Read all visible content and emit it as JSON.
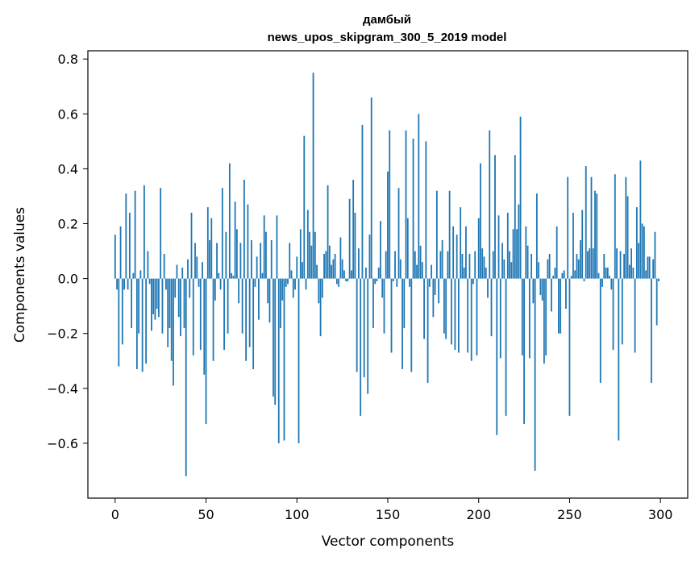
{
  "chart_data": {
    "type": "bar",
    "title": "дамбый",
    "subtitle": "news_upos_skipgram_300_5_2019 model",
    "xlabel": "Vector components",
    "ylabel": "Components values",
    "xlim": [
      -15,
      315
    ],
    "ylim": [
      -0.8,
      0.83
    ],
    "x_ticks": [
      {
        "value": 0,
        "label": "0"
      },
      {
        "value": 50,
        "label": "50"
      },
      {
        "value": 100,
        "label": "100"
      },
      {
        "value": 150,
        "label": "150"
      },
      {
        "value": 200,
        "label": "200"
      },
      {
        "value": 250,
        "label": "250"
      },
      {
        "value": 300,
        "label": "300"
      }
    ],
    "y_ticks": [
      {
        "value": -0.6,
        "label": "−0.6"
      },
      {
        "value": -0.4,
        "label": "−0.4"
      },
      {
        "value": -0.2,
        "label": "−0.2"
      },
      {
        "value": 0.0,
        "label": "0.0"
      },
      {
        "value": 0.2,
        "label": "0.2"
      },
      {
        "value": 0.4,
        "label": "0.4"
      },
      {
        "value": 0.6,
        "label": "0.6"
      },
      {
        "value": 0.8,
        "label": "0.8"
      }
    ],
    "bar_color": "#1f77b4",
    "grid": false,
    "values": [
      0.16,
      -0.04,
      -0.32,
      0.19,
      -0.24,
      -0.04,
      0.31,
      -0.04,
      0.24,
      -0.18,
      0.02,
      0.32,
      -0.33,
      -0.2,
      0.03,
      -0.34,
      0.34,
      -0.31,
      0.1,
      -0.02,
      -0.19,
      -0.13,
      -0.15,
      -0.11,
      -0.14,
      0.33,
      -0.2,
      0.09,
      -0.04,
      -0.25,
      -0.18,
      -0.3,
      -0.39,
      -0.07,
      0.05,
      -0.14,
      -0.21,
      0.04,
      -0.18,
      -0.72,
      0.07,
      -0.07,
      0.24,
      -0.28,
      0.13,
      0.08,
      -0.03,
      -0.26,
      0.06,
      -0.35,
      -0.53,
      0.26,
      0.14,
      0.22,
      -0.3,
      -0.08,
      0.13,
      0.02,
      -0.04,
      0.33,
      -0.26,
      0.17,
      -0.2,
      0.42,
      0.02,
      0.01,
      0.28,
      0.18,
      -0.09,
      0.13,
      -0.2,
      0.36,
      -0.3,
      0.27,
      -0.25,
      0.14,
      -0.33,
      -0.03,
      0.08,
      -0.15,
      0.13,
      0.02,
      0.23,
      0.17,
      -0.09,
      -0.16,
      0.14,
      -0.43,
      -0.46,
      0.23,
      -0.6,
      -0.18,
      -0.08,
      -0.59,
      -0.03,
      -0.02,
      0.13,
      0.03,
      -0.07,
      -0.04,
      0.08,
      -0.6,
      0.18,
      0.06,
      0.52,
      -0.04,
      0.25,
      0.17,
      0.12,
      0.75,
      0.17,
      0.05,
      -0.09,
      -0.21,
      -0.07,
      0.09,
      0.1,
      0.34,
      0.12,
      0.05,
      0.07,
      0.09,
      -0.02,
      -0.03,
      0.15,
      0.07,
      0.03,
      -0.01,
      -0.01,
      0.29,
      0.03,
      0.36,
      0.24,
      -0.34,
      0.11,
      -0.5,
      0.56,
      -0.36,
      0.04,
      -0.42,
      0.16,
      0.66,
      -0.18,
      -0.02,
      -0.01,
      0.04,
      0.21,
      -0.07,
      -0.2,
      0.1,
      0.39,
      0.54,
      -0.27,
      -0.01,
      0.1,
      -0.03,
      0.33,
      0.07,
      -0.33,
      -0.18,
      0.54,
      0.22,
      -0.03,
      -0.34,
      0.51,
      0.1,
      0.05,
      0.6,
      0.12,
      0.06,
      -0.22,
      0.5,
      -0.38,
      -0.03,
      0.05,
      -0.14,
      -0.06,
      0.32,
      -0.09,
      0.1,
      0.14,
      -0.2,
      -0.22,
      0.1,
      0.32,
      -0.24,
      0.19,
      -0.26,
      0.16,
      -0.27,
      0.26,
      0.09,
      0.04,
      0.19,
      -0.27,
      0.09,
      -0.3,
      -0.02,
      0.1,
      -0.28,
      0.22,
      0.42,
      0.11,
      0.08,
      0.04,
      -0.07,
      0.54,
      -0.21,
      0.1,
      0.45,
      -0.57,
      0.23,
      -0.29,
      0.13,
      0.07,
      -0.5,
      0.24,
      0.1,
      0.06,
      0.18,
      0.45,
      0.18,
      0.27,
      0.59,
      -0.28,
      -0.53,
      0.19,
      0.12,
      -0.29,
      0.09,
      -0.09,
      -0.7,
      0.31,
      0.06,
      -0.06,
      -0.08,
      -0.31,
      -0.28,
      0.07,
      0.09,
      -0.12,
      0.01,
      0.04,
      0.19,
      -0.2,
      -0.2,
      0.02,
      0.03,
      -0.11,
      0.37,
      -0.5,
      0.01,
      0.24,
      0.03,
      0.09,
      0.07,
      0.14,
      0.25,
      -0.01,
      0.41,
      0.1,
      0.11,
      0.37,
      0.11,
      0.32,
      0.31,
      0.02,
      -0.38,
      -0.03,
      0.09,
      0.04,
      0.04,
      0.01,
      -0.04,
      -0.26,
      0.38,
      0.11,
      -0.59,
      0.1,
      -0.24,
      0.09,
      0.37,
      0.3,
      0.05,
      0.11,
      0.04,
      -0.27,
      0.26,
      0.13,
      0.43,
      0.2,
      0.19,
      0.03,
      0.08,
      0.08,
      -0.38,
      0.07,
      0.17,
      -0.17,
      -0.01
    ]
  }
}
